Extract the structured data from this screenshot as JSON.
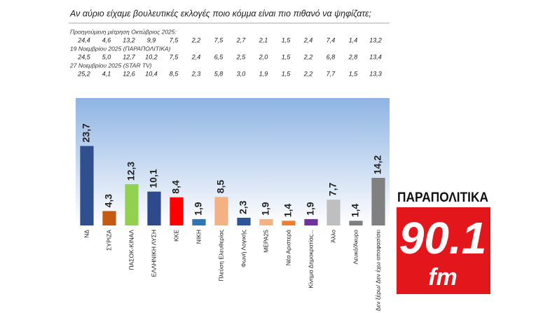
{
  "chart_data": {
    "type": "bar",
    "title": "Αν αύριο είχαμε βουλευτικές εκλογές ποιο κόμμα είναι πιο πιθανό να ψηφίζατε;",
    "categories": [
      "ΝΔ",
      "ΣΥΡΙΖΑ",
      "ΠΑΣΟΚ-ΚΙΝΑΛ",
      "ΕΛΛΗΝΙΚΗ ΛΥΣΗ",
      "ΚΚΕ",
      "ΝΙΚΗ",
      "Πλεύση Ελευθερίας",
      "Φωνή Λογικής",
      "ΜΕΡΑ25",
      "Νέα Αριστερά",
      "Κίνημα Δημοκρατίας...",
      "Άλλο",
      "Λευκό/Άκυρο",
      "Δεν ξέρω/ Δεν έχω αποφασίσει"
    ],
    "values": [
      23.7,
      4.3,
      12.3,
      10.1,
      8.4,
      1.9,
      8.5,
      2.3,
      1.9,
      1.4,
      1.9,
      7.7,
      1.4,
      14.2
    ],
    "value_labels": [
      "23,7",
      "4,3",
      "12,3",
      "10,1",
      "8,4",
      "1,9",
      "8,5",
      "2,3",
      "1,9",
      "1,4",
      "1,9",
      "7,7",
      "1,4",
      "14,2"
    ],
    "colors": [
      "#2f4f8f",
      "#c55a11",
      "#92d050",
      "#2f4a8c",
      "#ff0000",
      "#2e75b6",
      "#f4b183",
      "#2f5597",
      "#f4b183",
      "#ed7d31",
      "#7030a0",
      "#bfbfbf",
      "#7f7f7f",
      "#808080"
    ],
    "ylim": [
      0,
      38
    ],
    "comparisons": [
      {
        "label": "Προηγούμενη μέτρηση Οκτώβριος 2025:",
        "values": [
          "24,4",
          "4,6",
          "13,2",
          "9,9",
          "7,5",
          "2,2",
          "7,5",
          "2,7",
          "2,1",
          "1,5",
          "2,4",
          "7,4",
          "1,4",
          "13,2"
        ]
      },
      {
        "label": "19 Νοεμβρίου 2025 (ΠΑΡΑΠΟΛΙΤΙΚΑ)",
        "values": [
          "24,5",
          "5,0",
          "12,7",
          "10,2",
          "7,5",
          "2,4",
          "6,5",
          "2,5",
          "2,0",
          "1,5",
          "2,2",
          "6,8",
          "2,8",
          "13,4"
        ]
      },
      {
        "label": "27 Νοεμβρίου 2025 (STAR TV)",
        "values": [
          "25,2",
          "4,1",
          "12,6",
          "10,4",
          "8,5",
          "2,3",
          "5,8",
          "3,0",
          "1,9",
          "1,5",
          "2,2",
          "7,7",
          "1,5",
          "13,3"
        ]
      }
    ]
  },
  "logo": {
    "brand": "ΠΑΡΑΠΟΛΙΤΙΚΑ",
    "frequency": "90.1",
    "band": "fm"
  }
}
